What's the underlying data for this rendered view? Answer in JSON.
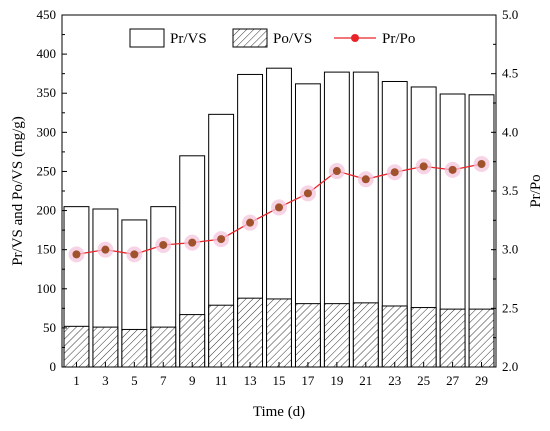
{
  "chart_data": {
    "type": "bar",
    "x": [
      1,
      3,
      5,
      7,
      9,
      11,
      13,
      15,
      17,
      19,
      21,
      23,
      25,
      27,
      29
    ],
    "xlabel": "Time (d)",
    "ylabel": "Pr/VS and Po/VS (mg/g)",
    "ylabel_right": "Pr/Po",
    "ylim": [
      0,
      450
    ],
    "ylim_right": [
      2.0,
      5.0
    ],
    "yticks": [
      0,
      50,
      100,
      150,
      200,
      250,
      300,
      350,
      400,
      450
    ],
    "yticks_right": [
      "2.0",
      "2.5",
      "3.0",
      "3.5",
      "4.0",
      "4.5",
      "5.0"
    ],
    "grid": false,
    "legend_position": "top",
    "series": [
      {
        "name": "Pr/VS",
        "type": "bar",
        "axis": "left",
        "fill": "#ffffff",
        "values": [
          205,
          202,
          188,
          205,
          270,
          323,
          374,
          382,
          362,
          377,
          377,
          365,
          358,
          349,
          348
        ]
      },
      {
        "name": "Po/VS",
        "type": "bar-hatched",
        "axis": "left",
        "fill": "#ffffff",
        "values": [
          52,
          51,
          48,
          51,
          67,
          79,
          88,
          87,
          81,
          81,
          82,
          78,
          76,
          74,
          74
        ]
      },
      {
        "name": "Pr/Po",
        "type": "line",
        "axis": "right",
        "color": "#e8242a",
        "marker_color": "#a0522d",
        "values": [
          2.96,
          3.0,
          2.96,
          3.04,
          3.06,
          3.09,
          3.23,
          3.36,
          3.48,
          3.67,
          3.6,
          3.66,
          3.71,
          3.68,
          3.73
        ]
      }
    ]
  }
}
